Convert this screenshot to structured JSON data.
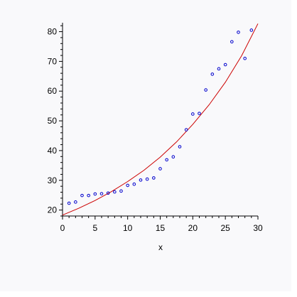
{
  "chart_data": {
    "type": "scatter",
    "title": "",
    "xlabel": "x",
    "ylabel": "",
    "xlim": [
      0,
      30
    ],
    "ylim": [
      18,
      83
    ],
    "grid": false,
    "x_ticks": [
      0,
      5,
      10,
      15,
      20,
      25,
      30
    ],
    "y_ticks": [
      20,
      30,
      40,
      50,
      60,
      70,
      80
    ],
    "series": [
      {
        "kind": "scatter",
        "color": "#0000cc",
        "x": [
          1,
          2,
          3,
          4,
          5,
          6,
          7,
          8,
          9,
          10,
          11,
          12,
          13,
          14,
          15,
          16,
          17,
          18,
          19,
          20,
          21,
          22,
          23,
          24,
          25,
          26,
          27,
          28,
          29
        ],
        "y": [
          22.3,
          22.7,
          24.9,
          24.9,
          25.4,
          25.5,
          25.7,
          26.1,
          26.4,
          28.3,
          28.7,
          30.1,
          30.4,
          30.8,
          33.9,
          36.9,
          37.9,
          41.3,
          47.0,
          52.3,
          52.5,
          60.4,
          65.7,
          67.5,
          68.9,
          76.6,
          79.8,
          71.0,
          80.5
        ]
      },
      {
        "kind": "line",
        "color": "#cc0000",
        "x": [
          0,
          2.5,
          5,
          7.5,
          10,
          12.5,
          15,
          17.5,
          20,
          22.5,
          25,
          27.5,
          30
        ],
        "y": [
          18.3,
          20.6,
          23.2,
          26.2,
          29.6,
          33.4,
          37.8,
          42.9,
          48.8,
          55.4,
          63.0,
          71.9,
          82.7
        ]
      }
    ]
  }
}
